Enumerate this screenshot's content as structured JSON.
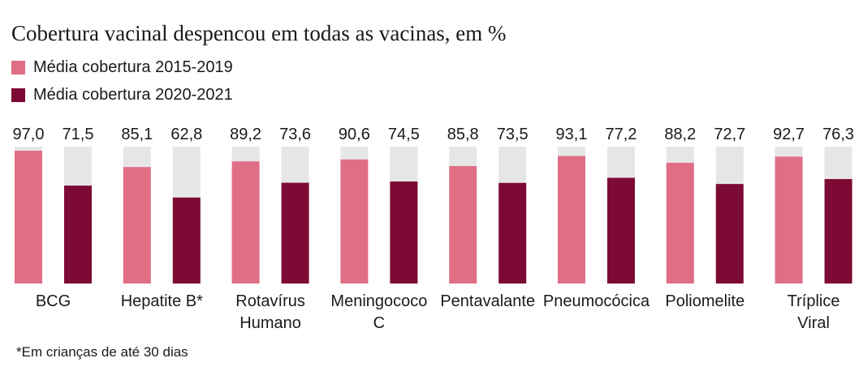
{
  "title": "Cobertura vacinal despencou em todas as vacinas, em %",
  "colors": {
    "series1": "#e06e85",
    "series2": "#7d0a35",
    "track": "#e6e6e6"
  },
  "footnote": "*Em crianças de até 30 dias",
  "chart_data": {
    "type": "bar",
    "title": "Cobertura vacinal despencou em todas as vacinas, em %",
    "categories": [
      [
        "BCG"
      ],
      [
        "Hepatite B*"
      ],
      [
        "Rotavírus",
        "Humano"
      ],
      [
        "Meningococo",
        "C"
      ],
      [
        "Pentavalante"
      ],
      [
        "Pneumocócica"
      ],
      [
        "Poliomelite"
      ],
      [
        "Tríplice",
        "Viral"
      ]
    ],
    "series": [
      {
        "name": "Média cobertura 2015-2019",
        "values": [
          97.0,
          85.1,
          89.2,
          90.6,
          85.8,
          93.1,
          88.2,
          92.7
        ],
        "labels": [
          "97,0",
          "85,1",
          "89,2",
          "90,6",
          "85,8",
          "93,1",
          "88,2",
          "92,7"
        ]
      },
      {
        "name": "Média cobertura 2020-2021",
        "values": [
          71.5,
          62.8,
          73.6,
          74.5,
          73.5,
          77.2,
          72.7,
          76.3
        ],
        "labels": [
          "71,5",
          "62,8",
          "73,6",
          "74,5",
          "73,5",
          "77,2",
          "72,7",
          "76,3"
        ]
      }
    ],
    "ylim": [
      0,
      100
    ],
    "grid": false,
    "legend": "top-left"
  }
}
